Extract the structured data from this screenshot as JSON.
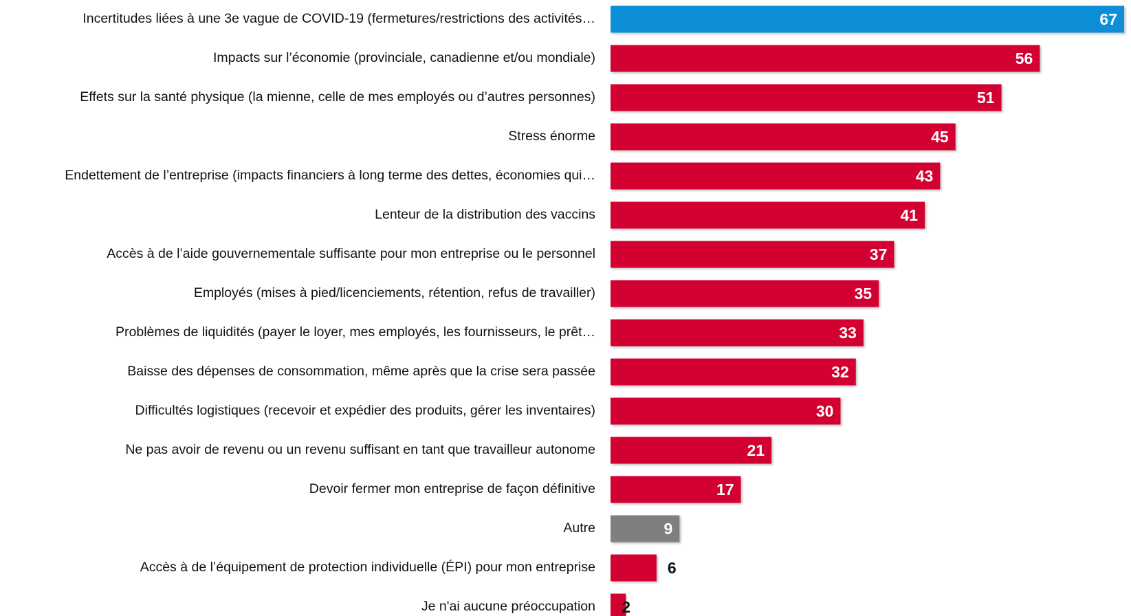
{
  "chart_data": {
    "type": "hbar",
    "categories": [
      "Incertitudes liées à une 3e vague de COVID-19 (fermetures/restrictions des activités…",
      "Impacts sur l’économie (provinciale, canadienne et/ou mondiale)",
      "Effets sur la santé physique (la mienne, celle de mes employés ou d’autres personnes)",
      "Stress énorme",
      "Endettement de l’entreprise (impacts financiers à long terme des dettes, économies qui…",
      "Lenteur de la distribution des vaccins",
      "Accès à de l’aide gouvernementale suffisante pour mon entreprise ou le personnel",
      "Employés (mises à pied/licenciements, rétention, refus de travailler)",
      "Problèmes de liquidités (payer le loyer, mes employés, les fournisseurs, le prêt…",
      "Baisse des dépenses de consommation, même après que la crise sera passée",
      "Difficultés logistiques (recevoir et expédier des produits, gérer les inventaires)",
      "Ne pas avoir de revenu ou un revenu suffisant en tant que travailleur autonome",
      "Devoir fermer mon entreprise de façon définitive",
      "Autre",
      "Accès à de l’équipement de protection individuelle (ÉPI) pour mon entreprise",
      "Je n'ai aucune préoccupation"
    ],
    "values": [
      67,
      56,
      51,
      45,
      43,
      41,
      37,
      35,
      33,
      32,
      30,
      21,
      17,
      9,
      6,
      2
    ],
    "colors": [
      "#0a8fd8",
      "#d30032",
      "#d30032",
      "#d30032",
      "#d30032",
      "#d30032",
      "#d30032",
      "#d30032",
      "#d30032",
      "#d30032",
      "#d30032",
      "#d30032",
      "#d30032",
      "#7f7f7f",
      "#d30032",
      "#d30032"
    ]
  }
}
